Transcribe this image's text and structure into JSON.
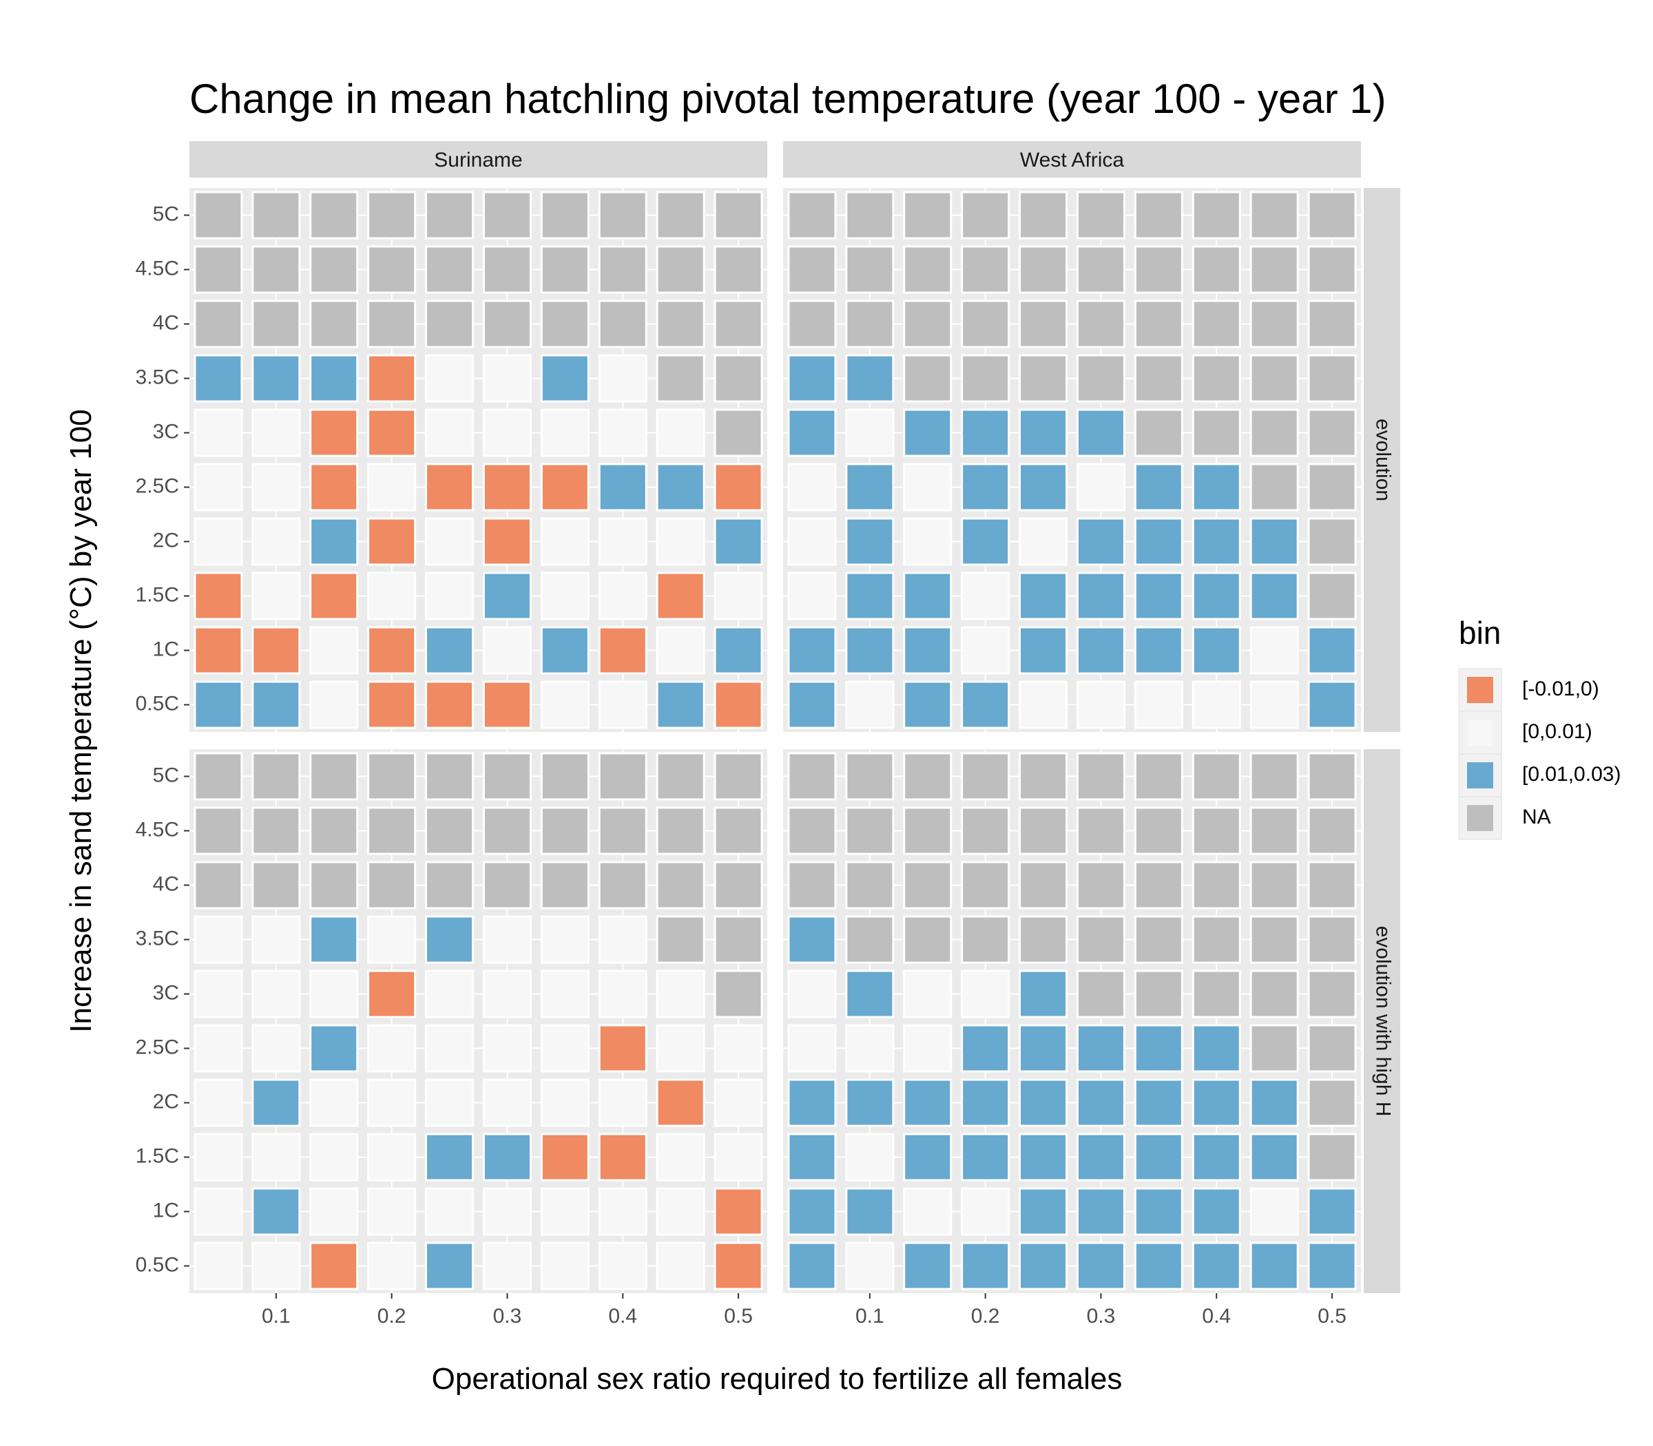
{
  "chart_data": {
    "type": "heatmap",
    "title": "Change in mean hatchling pivotal temperature (year 100 - year 1)",
    "xlabel": "Operational sex ratio required to fertilize all females",
    "ylabel": "Increase in sand temperature (°C) by year 100",
    "x": [
      0.05,
      0.1,
      0.15,
      0.2,
      0.25,
      0.3,
      0.35,
      0.4,
      0.45,
      0.5
    ],
    "x_ticks": [
      "0.1",
      "0.2",
      "0.3",
      "0.4",
      "0.5"
    ],
    "x_tick_values": [
      0.1,
      0.2,
      0.3,
      0.4,
      0.5
    ],
    "y_categories": [
      "0.5C",
      "1C",
      "1.5C",
      "2C",
      "2.5C",
      "3C",
      "3.5C",
      "4C",
      "4.5C",
      "5C"
    ],
    "col_facets": [
      "Suriname",
      "West Africa"
    ],
    "row_facets": [
      "evolution",
      "evolution with high H"
    ],
    "legend": {
      "title": "bin",
      "position": "right",
      "levels": [
        {
          "code": "O",
          "label": "[-0.01,0)",
          "color": "#EF8A62"
        },
        {
          "code": "W",
          "label": "[0,0.01)",
          "color": "#F7F7F7"
        },
        {
          "code": "B",
          "label": "[0.01,0.03)",
          "color": "#67A9CF"
        },
        {
          "code": "N",
          "label": "NA",
          "color": "#BEBEBE"
        }
      ]
    },
    "panels": [
      {
        "col": "Suriname",
        "row": "evolution",
        "rows_top_to_bottom": {
          "5C": "NNNNNNNNNN",
          "4.5C": "NNNNNNNNNN",
          "4C": "NNNNNNNNNN",
          "3.5C": "BBBOWWBWNN",
          "3C": "WWOOWWWWWN",
          "2.5C": "WWOWOOOBBO",
          "2C": "WWBOWOWWWB",
          "1.5C": "OWOWWBWWOW",
          "1C": "OOWOBWBOWB",
          "0.5C": "BBWOOOWWBO"
        }
      },
      {
        "col": "West Africa",
        "row": "evolution",
        "rows_top_to_bottom": {
          "5C": "NNNNNNNNNN",
          "4.5C": "NNNNNNNNNN",
          "4C": "NNNNNNNNNN",
          "3.5C": "BBNNNNNNNN",
          "3C": "BWBBBBNNNN",
          "2.5C": "WBWBBWBBNN",
          "2C": "WBWBWBBBBN",
          "1.5C": "WBBWBBBBBN",
          "1C": "BBBWBBBBWB",
          "0.5C": "BWBBWWWWWB"
        }
      },
      {
        "col": "Suriname",
        "row": "evolution with high H",
        "rows_top_to_bottom": {
          "5C": "NNNNNNNNNN",
          "4.5C": "NNNNNNNNNN",
          "4C": "NNNNNNNNNN",
          "3.5C": "WWBWBWWWNN",
          "3C": "WWWOWWWWWN",
          "2.5C": "WWBWWWWOWW",
          "2C": "WBWWWWWWOW",
          "1.5C": "WWWWBBOOWW",
          "1C": "WBWWWWWWWO",
          "0.5C": "WWOWBWWWWO"
        }
      },
      {
        "col": "West Africa",
        "row": "evolution with high H",
        "rows_top_to_bottom": {
          "5C": "NNNNNNNNNN",
          "4.5C": "NNNNNNNNNN",
          "4C": "NNNNNNNNNN",
          "3.5C": "BNNNNNNNNN",
          "3C": "WBWWBNNNNN",
          "2.5C": "WWWBBBBBNN",
          "2C": "BBBBBBBBBN",
          "1.5C": "BWBBBBBBBN",
          "1C": "BBWWBBBBWB",
          "0.5C": "BWBBBBBBBB"
        }
      }
    ]
  }
}
